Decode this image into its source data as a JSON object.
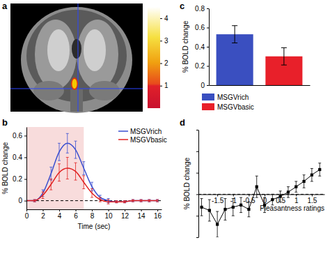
{
  "chart_data": [
    {
      "type": "image",
      "title": "a",
      "colorbar": {
        "range": [
          0,
          4.5
        ],
        "ticks": [
          1,
          2,
          3,
          4
        ]
      }
    },
    {
      "type": "line",
      "title": "b",
      "x": [
        0,
        1,
        2,
        3,
        4,
        5,
        6,
        7,
        8,
        9,
        10,
        11,
        12,
        13,
        14,
        15,
        16
      ],
      "xlim": [
        0,
        16.5
      ],
      "xticks": [
        0,
        2,
        4,
        6,
        8,
        10,
        12,
        14,
        16
      ],
      "ylim": [
        -0.08,
        0.68
      ],
      "yticks": [
        0,
        0.2,
        0.4,
        0.6
      ],
      "x_label": "Time (sec)",
      "y_label": "% BOLD change",
      "shaded_region": [
        0,
        7
      ],
      "legend": "upper right",
      "series": [
        {
          "name": "MSGVrich",
          "color": "#3a4fd0",
          "values": [
            0,
            0,
            0.07,
            0.25,
            0.45,
            0.53,
            0.47,
            0.3,
            0.13,
            0.03,
            0,
            -0.01,
            -0.01,
            0,
            0,
            0,
            0
          ],
          "errors": [
            0,
            0.01,
            0.03,
            0.06,
            0.08,
            0.09,
            0.08,
            0.06,
            0.04,
            0.02,
            0.02,
            0.01,
            0.01,
            0.01,
            0.01,
            0.01,
            0.01
          ]
        },
        {
          "name": "MSGVbasic",
          "color": "#e02020",
          "values": [
            0,
            0,
            0.05,
            0.15,
            0.26,
            0.3,
            0.27,
            0.17,
            0.07,
            0.01,
            -0.01,
            -0.01,
            -0.01,
            0,
            0,
            0,
            0
          ],
          "errors": [
            0,
            0.01,
            0.03,
            0.05,
            0.08,
            0.1,
            0.08,
            0.06,
            0.04,
            0.02,
            0.02,
            0.01,
            0.01,
            0.01,
            0.01,
            0.01,
            0.01
          ]
        }
      ]
    },
    {
      "type": "bar",
      "title": "c",
      "categories": [
        "MSGVrich",
        "MSGVbasic"
      ],
      "values": [
        0.53,
        0.3
      ],
      "errors": [
        0.09,
        0.09
      ],
      "colors": [
        "#3a4fc0",
        "#e8202a"
      ],
      "ylim": [
        0,
        0.8
      ],
      "yticks": [
        0,
        0.2,
        0.4,
        0.6,
        0.8
      ],
      "y_label": "% BOLD change",
      "legend": "bottom",
      "tick_labels": "y"
    },
    {
      "type": "line",
      "title": "d",
      "x": [
        -2,
        -1.75,
        -1.5,
        -1.25,
        -1,
        -0.75,
        -0.5,
        -0.25,
        0,
        0.25,
        0.5,
        0.75,
        1,
        1.25,
        1.5,
        1.75
      ],
      "values": [
        -0.12,
        -0.15,
        -0.28,
        -0.14,
        -0.12,
        -0.1,
        -0.14,
        0.07,
        -0.1,
        -0.05,
        -0.02,
        0.02,
        0.07,
        0.12,
        0.18,
        0.23
      ],
      "errors": [
        0.08,
        0.1,
        0.12,
        0.1,
        0.08,
        0.07,
        0.07,
        0.1,
        0.07,
        0.05,
        0.05,
        0.05,
        0.05,
        0.06,
        0.06,
        0.06
      ],
      "xlim": [
        -2.1,
        1.9
      ],
      "xticks": [
        -1.5,
        -1,
        -0.5,
        0,
        0.5,
        1,
        1.5
      ],
      "ylim": [
        -0.4,
        0.6
      ],
      "yticks": [
        -0.4,
        -0.2,
        0,
        0.2,
        0.4,
        0.6
      ],
      "x_label": "Pleasantness ratings",
      "y_label": "% BOLD change",
      "color": "#000000",
      "marker": "square",
      "line_style": "solid",
      "tick_labels": "x"
    }
  ]
}
